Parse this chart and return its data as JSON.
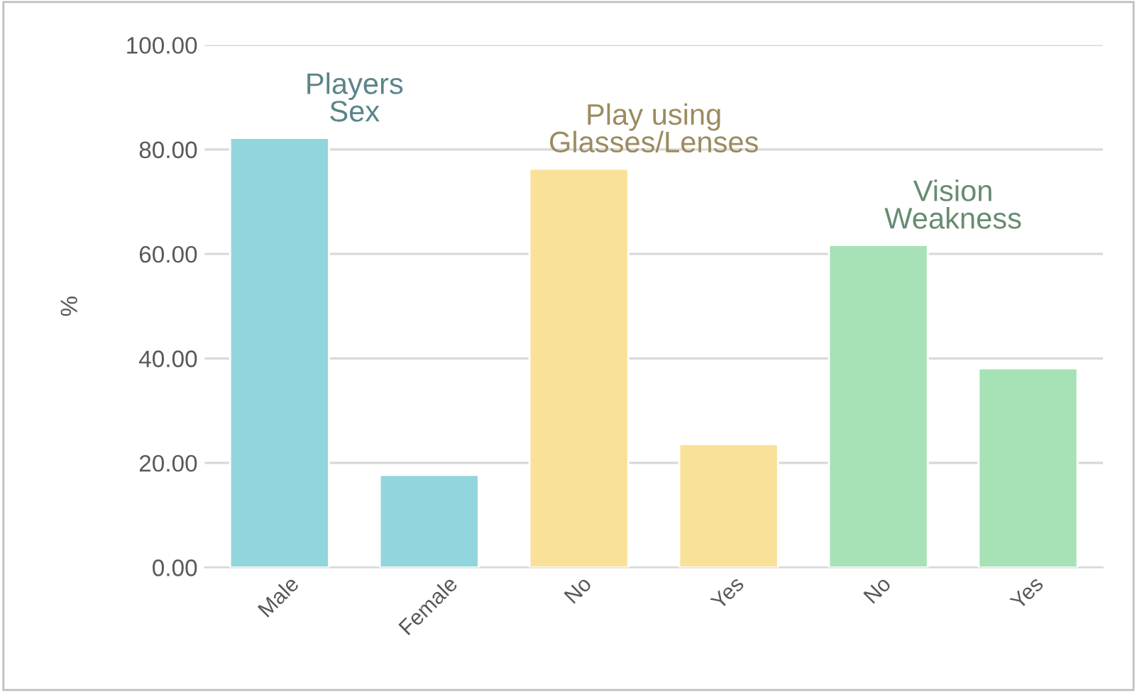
{
  "chart_data": {
    "type": "bar",
    "ylabel": "%",
    "categories": [
      "Male",
      "Female",
      "No",
      "Yes",
      "No",
      "Yes"
    ],
    "series": [
      {
        "name": "Players\nSex",
        "color": "#92d6dd",
        "values": [
          82.2,
          17.7,
          null,
          null,
          null,
          null
        ]
      },
      {
        "name": "Play using\nGlasses/Lenses",
        "color": "#fae19a",
        "values": [
          null,
          null,
          76.3,
          23.6,
          null,
          null
        ]
      },
      {
        "name": "Vision\nWeakness",
        "color": "#a6e2b6",
        "values": [
          null,
          null,
          null,
          null,
          61.7,
          38.1
        ]
      }
    ],
    "ylim": [
      0,
      100
    ],
    "yticks": [
      {
        "value": 0,
        "label": "0.00"
      },
      {
        "value": 20,
        "label": "20.00"
      },
      {
        "value": 40,
        "label": "40.00"
      },
      {
        "value": 60,
        "label": "60.00"
      },
      {
        "value": 80,
        "label": "80.00"
      },
      {
        "value": 100,
        "label": "100.00"
      }
    ],
    "grid": "y",
    "legend": false
  }
}
